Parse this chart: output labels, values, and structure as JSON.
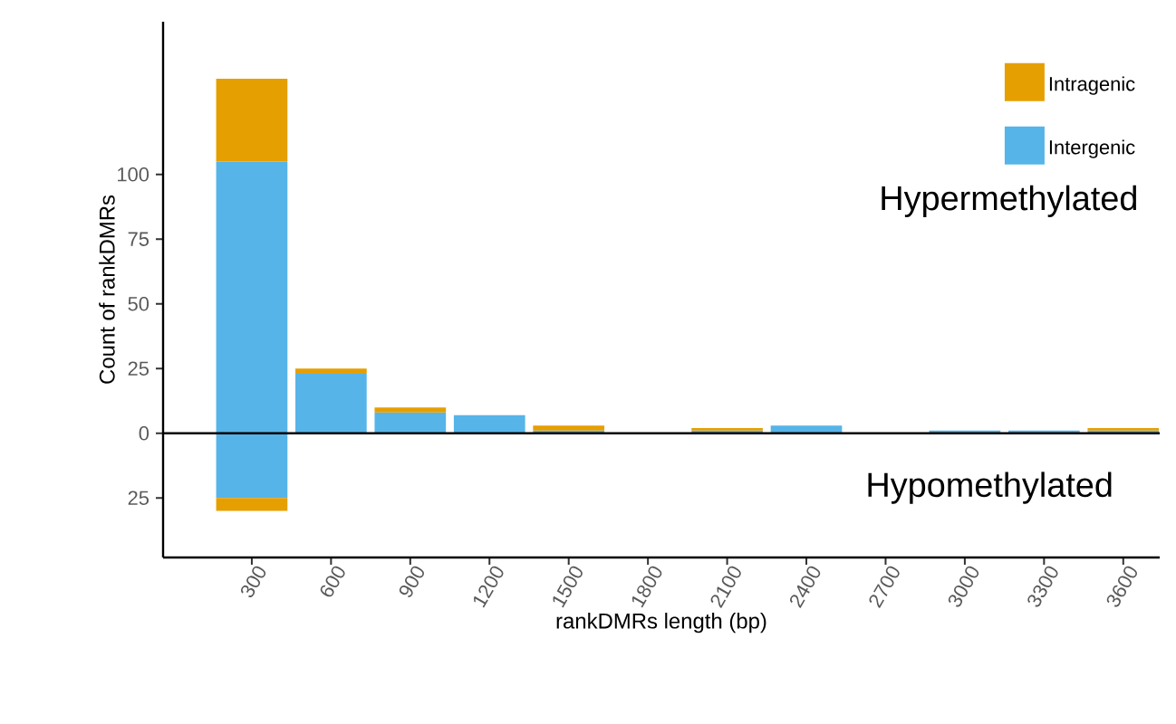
{
  "chart_data": {
    "type": "bar",
    "stacked": true,
    "xlabel": "rankDMRs length (bp)",
    "ylabel": "Count of rankDMRs",
    "categories": [
      "300",
      "600",
      "900",
      "1200",
      "1500",
      "1800",
      "2100",
      "2400",
      "2700",
      "3000",
      "3300",
      "3600"
    ],
    "series": [
      {
        "name": "Intergenic",
        "color": "#56b4e9",
        "values": [
          105,
          23,
          8,
          7,
          1,
          0,
          1,
          3,
          0,
          1,
          1,
          1
        ]
      },
      {
        "name": "Intragenic",
        "color": "#e69f00",
        "values": [
          32,
          2,
          2,
          0,
          2,
          0,
          1,
          0,
          0,
          0,
          0,
          1
        ]
      },
      {
        "color": "#56b4e9",
        "values": [
          -25,
          null,
          null,
          null,
          null,
          null,
          null,
          null,
          null,
          null,
          null,
          null
        ]
      },
      {
        "color": "#e69f00",
        "values": [
          -5,
          null,
          null,
          null,
          null,
          null,
          null,
          null,
          null,
          null,
          null,
          null
        ]
      }
    ],
    "ylim": [
      -48,
      159
    ],
    "yticks": [
      {
        "value": -25,
        "label": "25"
      },
      0,
      25,
      50,
      75,
      100
    ],
    "ref_lines": [
      {
        "axis": "y",
        "value": 0,
        "color": "#000000"
      }
    ],
    "annotations": [
      "Hypermethylated",
      "Hypomethylated"
    ],
    "legend": "top right",
    "grid": false
  }
}
